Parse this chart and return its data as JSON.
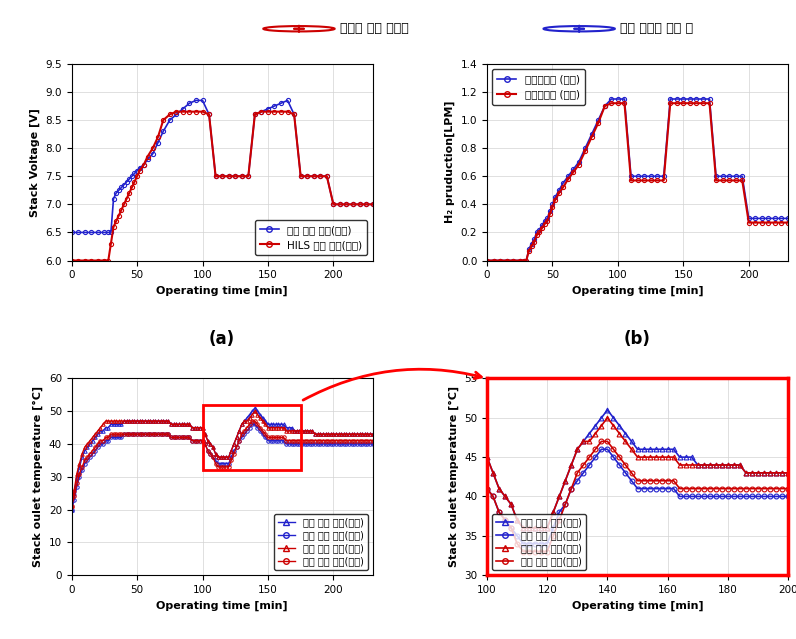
{
  "title_legend_red": "디지털 트윈 결과값",
  "title_legend_blue": "실제 장치의 실험 값",
  "panel_a": {
    "xlabel": "Operating time [min]",
    "ylabel": "Stack Voltage [V]",
    "xlim": [
      0,
      230
    ],
    "ylim": [
      6,
      9.5
    ],
    "yticks": [
      6,
      6.5,
      7,
      7.5,
      8,
      8.5,
      9,
      9.5
    ],
    "xticks": [
      0,
      50,
      100,
      150,
      200
    ],
    "legend": [
      "실제 스택 전압(실험)",
      "HILS 스택 전압(모델)"
    ],
    "blue_x": [
      0,
      5,
      10,
      15,
      20,
      25,
      28,
      30,
      32,
      34,
      36,
      38,
      40,
      42,
      44,
      46,
      48,
      50,
      52,
      55,
      58,
      62,
      66,
      70,
      75,
      80,
      85,
      90,
      95,
      100,
      105,
      110,
      115,
      120,
      125,
      130,
      135,
      140,
      145,
      150,
      155,
      160,
      165,
      170,
      175,
      180,
      185,
      190,
      195,
      200,
      205,
      210,
      215,
      220,
      225,
      230
    ],
    "blue_y": [
      6.5,
      6.5,
      6.5,
      6.5,
      6.5,
      6.5,
      6.5,
      6.5,
      7.1,
      7.2,
      7.25,
      7.3,
      7.35,
      7.4,
      7.45,
      7.5,
      7.55,
      7.6,
      7.65,
      7.7,
      7.8,
      7.9,
      8.1,
      8.3,
      8.5,
      8.6,
      8.7,
      8.8,
      8.85,
      8.85,
      8.6,
      7.5,
      7.5,
      7.5,
      7.5,
      7.5,
      7.5,
      8.6,
      8.65,
      8.7,
      8.75,
      8.8,
      8.85,
      8.6,
      7.5,
      7.5,
      7.5,
      7.5,
      7.5,
      7.0,
      7.0,
      7.0,
      7.0,
      7.0,
      7.0,
      7.0
    ],
    "red_x": [
      0,
      5,
      10,
      15,
      20,
      25,
      28,
      30,
      32,
      34,
      36,
      38,
      40,
      42,
      44,
      46,
      48,
      50,
      52,
      55,
      58,
      62,
      66,
      70,
      75,
      80,
      85,
      90,
      95,
      100,
      105,
      110,
      115,
      120,
      125,
      130,
      135,
      140,
      145,
      150,
      155,
      160,
      165,
      170,
      175,
      180,
      185,
      190,
      195,
      200,
      205,
      210,
      215,
      220,
      225,
      230
    ],
    "red_y": [
      6.0,
      6.0,
      6.0,
      6.0,
      6.0,
      6.0,
      6.0,
      6.3,
      6.6,
      6.7,
      6.8,
      6.9,
      7.0,
      7.1,
      7.2,
      7.3,
      7.4,
      7.5,
      7.6,
      7.7,
      7.85,
      8.0,
      8.2,
      8.5,
      8.6,
      8.65,
      8.65,
      8.65,
      8.65,
      8.65,
      8.6,
      7.5,
      7.5,
      7.5,
      7.5,
      7.5,
      7.5,
      8.6,
      8.65,
      8.65,
      8.65,
      8.65,
      8.65,
      8.6,
      7.5,
      7.5,
      7.5,
      7.5,
      7.5,
      7.0,
      7.0,
      7.0,
      7.0,
      7.0,
      7.0,
      7.0
    ]
  },
  "panel_b": {
    "xlabel": "Operating time [min]",
    "ylabel": "H₂ pruduction[LPM]",
    "xlim": [
      0,
      230
    ],
    "ylim": [
      0,
      1.4
    ],
    "yticks": [
      0,
      0.2,
      0.4,
      0.6,
      0.8,
      1.0,
      1.2,
      1.4
    ],
    "xticks": [
      0,
      50,
      100,
      150,
      200
    ],
    "legend": [
      "수소생산량 (실험)",
      "수소생산량 (모델)"
    ],
    "blue_x": [
      0,
      5,
      10,
      15,
      20,
      25,
      28,
      30,
      32,
      34,
      36,
      38,
      40,
      42,
      44,
      46,
      48,
      50,
      52,
      55,
      58,
      62,
      66,
      70,
      75,
      80,
      85,
      90,
      95,
      100,
      105,
      110,
      115,
      120,
      125,
      130,
      135,
      140,
      145,
      150,
      155,
      160,
      165,
      170,
      175,
      180,
      185,
      190,
      195,
      200,
      205,
      210,
      215,
      220,
      225,
      230
    ],
    "blue_y": [
      0,
      0,
      0,
      0,
      0,
      0,
      0,
      0,
      0.08,
      0.12,
      0.15,
      0.2,
      0.22,
      0.25,
      0.28,
      0.3,
      0.35,
      0.4,
      0.45,
      0.5,
      0.55,
      0.6,
      0.65,
      0.7,
      0.8,
      0.9,
      1.0,
      1.1,
      1.15,
      1.15,
      1.15,
      0.6,
      0.6,
      0.6,
      0.6,
      0.6,
      0.6,
      1.15,
      1.15,
      1.15,
      1.15,
      1.15,
      1.15,
      1.15,
      0.6,
      0.6,
      0.6,
      0.6,
      0.6,
      0.3,
      0.3,
      0.3,
      0.3,
      0.3,
      0.3,
      0.3
    ],
    "red_x": [
      0,
      5,
      10,
      15,
      20,
      25,
      28,
      30,
      32,
      34,
      36,
      38,
      40,
      42,
      44,
      46,
      48,
      50,
      52,
      55,
      58,
      62,
      66,
      70,
      75,
      80,
      85,
      90,
      95,
      100,
      105,
      110,
      115,
      120,
      125,
      130,
      135,
      140,
      145,
      150,
      155,
      160,
      165,
      170,
      175,
      180,
      185,
      190,
      195,
      200,
      205,
      210,
      215,
      220,
      225,
      230
    ],
    "red_y": [
      0,
      0,
      0,
      0,
      0,
      0,
      0,
      0,
      0.07,
      0.1,
      0.13,
      0.18,
      0.2,
      0.23,
      0.26,
      0.28,
      0.33,
      0.38,
      0.43,
      0.48,
      0.52,
      0.58,
      0.63,
      0.68,
      0.78,
      0.88,
      0.98,
      1.1,
      1.12,
      1.12,
      1.12,
      0.57,
      0.57,
      0.57,
      0.57,
      0.57,
      0.57,
      1.12,
      1.12,
      1.12,
      1.12,
      1.12,
      1.12,
      1.12,
      0.57,
      0.57,
      0.57,
      0.57,
      0.57,
      0.27,
      0.27,
      0.27,
      0.27,
      0.27,
      0.27,
      0.27
    ]
  },
  "panel_c": {
    "xlabel": "Operating time [min]",
    "ylabel": "Stack oulet temperature [°C]",
    "xlim": [
      0,
      230
    ],
    "ylim": [
      0,
      60
    ],
    "yticks": [
      0,
      10,
      20,
      30,
      40,
      50,
      60
    ],
    "xticks": [
      0,
      50,
      100,
      150,
      200
    ],
    "legend": [
      "스택 출구 온도(실험)",
      "스택 입구 온도(실험)",
      "스택 출구 온도(모델)",
      "스택 입구 온도(모델)"
    ],
    "blue_tri_x": [
      0,
      2,
      4,
      6,
      8,
      10,
      12,
      14,
      16,
      18,
      20,
      22,
      24,
      26,
      28,
      30,
      32,
      34,
      36,
      38,
      40,
      42,
      44,
      46,
      48,
      50,
      52,
      54,
      56,
      58,
      60,
      62,
      64,
      66,
      68,
      70,
      72,
      74,
      76,
      78,
      80,
      82,
      84,
      86,
      88,
      90,
      92,
      94,
      96,
      98,
      100,
      102,
      104,
      106,
      108,
      110,
      112,
      114,
      116,
      118,
      120,
      122,
      124,
      126,
      128,
      130,
      132,
      134,
      136,
      138,
      140,
      142,
      144,
      146,
      148,
      150,
      152,
      154,
      156,
      158,
      160,
      162,
      164,
      166,
      168,
      170,
      172,
      174,
      176,
      178,
      180,
      182,
      184,
      186,
      188,
      190,
      192,
      194,
      196,
      198,
      200,
      202,
      204,
      206,
      208,
      210,
      212,
      214,
      216,
      218,
      220,
      222,
      224,
      226,
      228,
      230
    ],
    "blue_tri_y": [
      20,
      25,
      30,
      33,
      36,
      38,
      39,
      40,
      41,
      42,
      43,
      44,
      44,
      45,
      45,
      46,
      46,
      46,
      46,
      46,
      47,
      47,
      47,
      47,
      47,
      47,
      47,
      47,
      47,
      47,
      47,
      47,
      47,
      47,
      47,
      47,
      47,
      47,
      46,
      46,
      46,
      46,
      46,
      46,
      46,
      46,
      45,
      45,
      45,
      45,
      45,
      43,
      41,
      40,
      39,
      37,
      36,
      36,
      36,
      36,
      36,
      38,
      40,
      42,
      44,
      46,
      47,
      48,
      49,
      50,
      51,
      50,
      49,
      48,
      47,
      46,
      46,
      46,
      46,
      46,
      46,
      46,
      45,
      45,
      45,
      44,
      44,
      44,
      44,
      44,
      44,
      44,
      44,
      43,
      43,
      43,
      43,
      43,
      43,
      43,
      43,
      43,
      43,
      43,
      43,
      43,
      43,
      43,
      43,
      43,
      43,
      43,
      43,
      43,
      43,
      43
    ],
    "blue_circ_x": [
      0,
      2,
      4,
      6,
      8,
      10,
      12,
      14,
      16,
      18,
      20,
      22,
      24,
      26,
      28,
      30,
      32,
      34,
      36,
      38,
      40,
      42,
      44,
      46,
      48,
      50,
      52,
      54,
      56,
      58,
      60,
      62,
      64,
      66,
      68,
      70,
      72,
      74,
      76,
      78,
      80,
      82,
      84,
      86,
      88,
      90,
      92,
      94,
      96,
      98,
      100,
      102,
      104,
      106,
      108,
      110,
      112,
      114,
      116,
      118,
      120,
      122,
      124,
      126,
      128,
      130,
      132,
      134,
      136,
      138,
      140,
      142,
      144,
      146,
      148,
      150,
      152,
      154,
      156,
      158,
      160,
      162,
      164,
      166,
      168,
      170,
      172,
      174,
      176,
      178,
      180,
      182,
      184,
      186,
      188,
      190,
      192,
      194,
      196,
      198,
      200,
      202,
      204,
      206,
      208,
      210,
      212,
      214,
      216,
      218,
      220,
      222,
      224,
      226,
      228,
      230
    ],
    "blue_circ_y": [
      20,
      23,
      27,
      30,
      32,
      34,
      35,
      36,
      37,
      38,
      39,
      40,
      40,
      41,
      41,
      42,
      42,
      42,
      42,
      42,
      43,
      43,
      43,
      43,
      43,
      43,
      43,
      43,
      43,
      43,
      43,
      43,
      43,
      43,
      43,
      43,
      43,
      43,
      42,
      42,
      42,
      42,
      42,
      42,
      42,
      42,
      41,
      41,
      41,
      41,
      41,
      40,
      38,
      37,
      36,
      35,
      34,
      34,
      34,
      34,
      34,
      36,
      38,
      39,
      41,
      42,
      43,
      44,
      45,
      46,
      46,
      45,
      44,
      43,
      42,
      41,
      41,
      41,
      41,
      41,
      41,
      41,
      40,
      40,
      40,
      40,
      40,
      40,
      40,
      40,
      40,
      40,
      40,
      40,
      40,
      40,
      40,
      40,
      40,
      40,
      40,
      40,
      40,
      40,
      40,
      40,
      40,
      40,
      40,
      40,
      40,
      40,
      40,
      40,
      40,
      40
    ],
    "red_tri_x": [
      0,
      2,
      4,
      6,
      8,
      10,
      12,
      14,
      16,
      18,
      20,
      22,
      24,
      26,
      28,
      30,
      32,
      34,
      36,
      38,
      40,
      42,
      44,
      46,
      48,
      50,
      52,
      54,
      56,
      58,
      60,
      62,
      64,
      66,
      68,
      70,
      72,
      74,
      76,
      78,
      80,
      82,
      84,
      86,
      88,
      90,
      92,
      94,
      96,
      98,
      100,
      102,
      104,
      106,
      108,
      110,
      112,
      114,
      116,
      118,
      120,
      122,
      124,
      126,
      128,
      130,
      132,
      134,
      136,
      138,
      140,
      142,
      144,
      146,
      148,
      150,
      152,
      154,
      156,
      158,
      160,
      162,
      164,
      166,
      168,
      170,
      172,
      174,
      176,
      178,
      180,
      182,
      184,
      186,
      188,
      190,
      192,
      194,
      196,
      198,
      200,
      202,
      204,
      206,
      208,
      210,
      212,
      214,
      216,
      218,
      220,
      222,
      224,
      226,
      228,
      230
    ],
    "red_tri_y": [
      21,
      26,
      31,
      34,
      37,
      39,
      40,
      41,
      42,
      43,
      44,
      45,
      46,
      47,
      47,
      47,
      47,
      47,
      47,
      47,
      47,
      47,
      47,
      47,
      47,
      47,
      47,
      47,
      47,
      47,
      47,
      47,
      47,
      47,
      47,
      47,
      47,
      47,
      46,
      46,
      46,
      46,
      46,
      46,
      46,
      46,
      45,
      45,
      45,
      45,
      45,
      43,
      41,
      40,
      39,
      37,
      36,
      36,
      36,
      36,
      36,
      38,
      40,
      42,
      44,
      46,
      47,
      47,
      48,
      49,
      50,
      49,
      48,
      47,
      46,
      45,
      45,
      45,
      45,
      45,
      45,
      45,
      44,
      44,
      44,
      44,
      44,
      44,
      44,
      44,
      44,
      44,
      44,
      43,
      43,
      43,
      43,
      43,
      43,
      43,
      43,
      43,
      43,
      43,
      43,
      43,
      43,
      43,
      43,
      43,
      43,
      43,
      43,
      43,
      43,
      43
    ],
    "red_circ_x": [
      0,
      2,
      4,
      6,
      8,
      10,
      12,
      14,
      16,
      18,
      20,
      22,
      24,
      26,
      28,
      30,
      32,
      34,
      36,
      38,
      40,
      42,
      44,
      46,
      48,
      50,
      52,
      54,
      56,
      58,
      60,
      62,
      64,
      66,
      68,
      70,
      72,
      74,
      76,
      78,
      80,
      82,
      84,
      86,
      88,
      90,
      92,
      94,
      96,
      98,
      100,
      102,
      104,
      106,
      108,
      110,
      112,
      114,
      116,
      118,
      120,
      122,
      124,
      126,
      128,
      130,
      132,
      134,
      136,
      138,
      140,
      142,
      144,
      146,
      148,
      150,
      152,
      154,
      156,
      158,
      160,
      162,
      164,
      166,
      168,
      170,
      172,
      174,
      176,
      178,
      180,
      182,
      184,
      186,
      188,
      190,
      192,
      194,
      196,
      198,
      200,
      202,
      204,
      206,
      208,
      210,
      212,
      214,
      216,
      218,
      220,
      222,
      224,
      226,
      228,
      230
    ],
    "red_circ_y": [
      21,
      24,
      28,
      31,
      33,
      35,
      36,
      37,
      38,
      39,
      40,
      41,
      41,
      42,
      42,
      43,
      43,
      43,
      43,
      43,
      43,
      43,
      43,
      43,
      43,
      43,
      43,
      43,
      43,
      43,
      43,
      43,
      43,
      43,
      43,
      43,
      43,
      43,
      42,
      42,
      42,
      42,
      42,
      42,
      42,
      42,
      41,
      41,
      41,
      41,
      41,
      40,
      38,
      37,
      36,
      34,
      33,
      33,
      33,
      33,
      33,
      35,
      37,
      39,
      41,
      43,
      44,
      45,
      46,
      47,
      47,
      46,
      45,
      44,
      43,
      42,
      42,
      42,
      42,
      42,
      42,
      42,
      41,
      41,
      41,
      41,
      41,
      41,
      41,
      41,
      41,
      41,
      41,
      41,
      41,
      41,
      41,
      41,
      41,
      41,
      41,
      41,
      41,
      41,
      41,
      41,
      41,
      41,
      41,
      41,
      41,
      41,
      41,
      41,
      41,
      41
    ],
    "rect_x1": 100,
    "rect_y1": 32,
    "rect_x2": 175,
    "rect_y2": 52
  },
  "panel_d": {
    "xlabel": "Operating time [min]",
    "ylabel": "Stack oulet temperature [°C]",
    "xlim": [
      100,
      200
    ],
    "ylim": [
      30,
      55
    ],
    "yticks": [
      30,
      35,
      40,
      45,
      50,
      55
    ],
    "xticks": [
      100,
      120,
      140,
      160,
      180,
      200
    ],
    "legend": [
      "스택 출구 온도(실험)",
      "스택 입구 온도(실험)",
      "스택 출구 온도(모델)",
      "스택 입구 온도(모델)"
    ]
  },
  "colors": {
    "blue": "#2222CC",
    "red": "#CC0000"
  }
}
